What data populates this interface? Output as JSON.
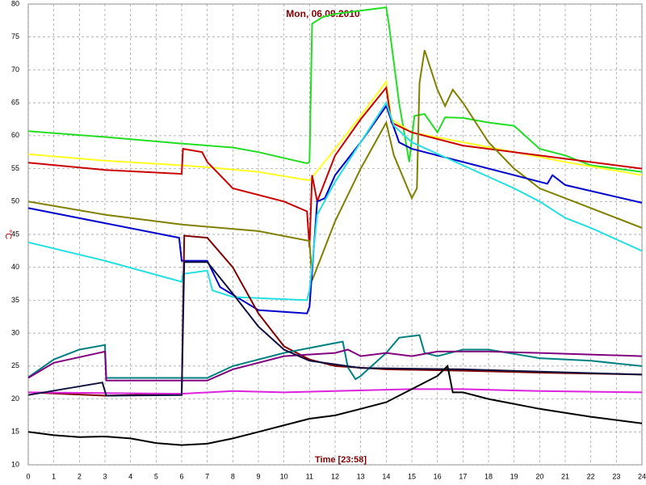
{
  "chart_data": {
    "type": "line",
    "title": "Mon, 06.09.2010",
    "xlabel": "Time [23:58]",
    "ylabel": "°C",
    "xlim": [
      0,
      24
    ],
    "xticks": [
      0,
      1,
      2,
      3,
      4,
      5,
      6,
      7,
      8,
      9,
      10,
      11,
      12,
      13,
      14,
      15,
      16,
      17,
      18,
      19,
      20,
      21,
      22,
      23,
      24
    ],
    "ylim": [
      10,
      80
    ],
    "yticks": [
      10,
      15,
      20,
      25,
      30,
      35,
      40,
      45,
      50,
      55,
      60,
      65,
      70,
      75,
      80
    ],
    "grid": true,
    "series": [
      {
        "color": "#22dd22",
        "x": [
          0,
          3,
          6,
          8,
          9,
          10.9,
          11,
          11.1,
          11.5,
          12,
          14,
          14.1,
          14.5,
          14.9,
          15.1,
          15.5,
          16,
          16.3,
          17,
          18,
          19,
          20,
          21,
          22,
          24
        ],
        "values": [
          60.7,
          59.8,
          58.8,
          58.2,
          57.5,
          55.8,
          56,
          77,
          78,
          78.5,
          79.5,
          77,
          65,
          56,
          63,
          63.3,
          60.5,
          62.8,
          62.7,
          62,
          61.5,
          58,
          57,
          55.5,
          54.5
        ]
      },
      {
        "color": "#ffff22",
        "x": [
          0,
          3,
          6,
          7,
          9,
          11,
          12,
          13,
          14,
          14.2,
          15,
          17,
          19,
          21,
          24
        ],
        "values": [
          57.2,
          56.2,
          55.5,
          55.2,
          54.5,
          53.2,
          58,
          63,
          68.2,
          62.5,
          60.5,
          59,
          57.5,
          56,
          54
        ]
      },
      {
        "color": "#cc0000",
        "x": [
          0,
          3,
          6,
          6.05,
          6.8,
          7,
          8,
          10,
          10.9,
          11,
          11.1,
          11.3,
          12,
          13,
          14,
          14.2,
          15,
          17,
          19,
          21,
          24
        ],
        "values": [
          55.9,
          54.8,
          54.2,
          58,
          57.5,
          56,
          52,
          50,
          48.5,
          43,
          54,
          50,
          57,
          62.5,
          67.3,
          62,
          60.5,
          58.5,
          57.5,
          56.5,
          55
        ]
      },
      {
        "color": "#808000",
        "x": [
          0,
          3,
          6,
          9,
          11,
          11.1,
          12,
          13,
          14,
          14.3,
          15,
          15.2,
          15.3,
          15.5,
          16,
          16.3,
          16.6,
          17,
          18,
          19,
          20,
          22,
          24
        ],
        "values": [
          50,
          48,
          46.5,
          45.5,
          44,
          38,
          47,
          55,
          62,
          57,
          50.5,
          52,
          68,
          73,
          67,
          64.5,
          67,
          65,
          59,
          55,
          52,
          49,
          46
        ]
      },
      {
        "color": "#0000cc",
        "x": [
          0,
          5.9,
          6,
          7,
          7.5,
          9,
          10.9,
          11,
          11.3,
          11.6,
          12,
          13,
          14,
          14.5,
          15,
          17,
          19,
          20.3,
          20.5,
          21,
          24
        ],
        "values": [
          49,
          44.5,
          41,
          41,
          37,
          33.5,
          33,
          34,
          50,
          50.5,
          54,
          59,
          64.5,
          59,
          58,
          56,
          54,
          52.7,
          54,
          52.5,
          49.8
        ]
      },
      {
        "color": "#22e0e0",
        "x": [
          0,
          3,
          6,
          6.05,
          7,
          7.2,
          8,
          10.9,
          11,
          11.3,
          12,
          13,
          14,
          14.3,
          15,
          17,
          19,
          20,
          21,
          22,
          24
        ],
        "values": [
          43.8,
          41,
          37.8,
          39,
          39.5,
          36.5,
          35.5,
          35,
          36.5,
          48,
          53,
          59,
          65,
          61.5,
          59,
          55.5,
          52,
          50,
          47.5,
          46,
          42.5
        ]
      },
      {
        "color": "#800000",
        "x": [
          0,
          3,
          6,
          6.1,
          7,
          8,
          9,
          10,
          11,
          12,
          14,
          17,
          20,
          24
        ],
        "values": [
          21,
          20.5,
          20.8,
          44.8,
          44.5,
          40,
          33,
          28,
          26,
          25,
          24.5,
          24.3,
          24,
          23.7
        ]
      },
      {
        "color": "#008080",
        "x": [
          0,
          1,
          2,
          3,
          3.05,
          6,
          7,
          8,
          10,
          12,
          12.3,
          12.5,
          12.8,
          13,
          14,
          14.5,
          15.3,
          15.5,
          16,
          17,
          18,
          20,
          22,
          24
        ],
        "values": [
          23.3,
          26,
          27.5,
          28.2,
          23.2,
          23.2,
          23.2,
          25,
          27,
          28.5,
          28.7,
          24.8,
          23,
          23.5,
          27,
          29.3,
          29.7,
          27,
          26.5,
          27.5,
          27.5,
          26.2,
          25.8,
          25
        ]
      },
      {
        "color": "#800080",
        "x": [
          0,
          1,
          3,
          3.05,
          7,
          8,
          10,
          12,
          12.5,
          13,
          14,
          15,
          16,
          18,
          20,
          24
        ],
        "values": [
          23.2,
          25.5,
          27.2,
          22.8,
          22.8,
          24.5,
          26.5,
          27,
          27.5,
          26.5,
          27,
          26.5,
          27.2,
          27.2,
          27,
          26.5
        ]
      },
      {
        "color": "#dd22dd",
        "x": [
          0,
          6,
          8,
          10,
          12,
          15,
          17,
          20,
          24
        ],
        "values": [
          21,
          20.8,
          21.2,
          21,
          21.2,
          21.5,
          21.5,
          21.2,
          21
        ]
      },
      {
        "color": "#101040",
        "x": [
          0,
          2.9,
          3.05,
          6,
          6.1,
          7,
          8,
          9,
          10,
          11,
          13,
          17,
          24
        ],
        "values": [
          20.6,
          22.5,
          20.5,
          20.6,
          40.8,
          40.8,
          36,
          31,
          27.5,
          25.8,
          24.7,
          24.5,
          23.7
        ]
      },
      {
        "color": "#000000",
        "x": [
          0,
          1,
          2,
          3,
          4,
          5,
          6,
          7,
          8,
          9,
          10,
          11,
          12,
          13,
          14,
          15,
          16,
          16.4,
          16.6,
          17,
          18,
          20,
          22,
          24
        ],
        "values": [
          15,
          14.5,
          14.2,
          14.3,
          14,
          13.3,
          13,
          13.2,
          14,
          15,
          16,
          17,
          17.5,
          18.5,
          19.5,
          21.5,
          23.5,
          25,
          21,
          21,
          20,
          18.5,
          17.3,
          16.3
        ]
      }
    ]
  }
}
